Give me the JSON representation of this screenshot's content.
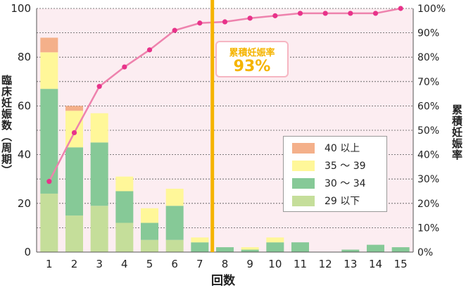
{
  "chart_data": {
    "type": "bar",
    "subtype": "stacked bar with cumulative line",
    "xlabel": "回数",
    "ylabel": "臨床妊娠数（周期）",
    "y2label": "累積妊娠率",
    "categories": [
      "1",
      "2",
      "3",
      "4",
      "5",
      "6",
      "7",
      "8",
      "9",
      "10",
      "11",
      "12",
      "13",
      "14",
      "15"
    ],
    "ylim": [
      0,
      100
    ],
    "yticks": [
      "0",
      "20",
      "40",
      "60",
      "80",
      "100"
    ],
    "y2lim": [
      0,
      100
    ],
    "y2ticks": [
      "0%",
      "10%",
      "20%",
      "30%",
      "40%",
      "50%",
      "60%",
      "70%",
      "80%",
      "90%",
      "100%"
    ],
    "series": [
      {
        "name": "29 以下",
        "color": "#c5de9a",
        "values": [
          24,
          15,
          19,
          12,
          5,
          5,
          0,
          0,
          0,
          0,
          0,
          0,
          0,
          0,
          0
        ]
      },
      {
        "name": "30 ～ 34",
        "color": "#86c997",
        "values": [
          43,
          28,
          26,
          13,
          7,
          14,
          4,
          2,
          1,
          4,
          4,
          0,
          1,
          3,
          2
        ]
      },
      {
        "name": "35 ～ 39",
        "color": "#fff799",
        "values": [
          15,
          15,
          12,
          6,
          6,
          7,
          2,
          0,
          1,
          2,
          0,
          0,
          0,
          0,
          0
        ]
      },
      {
        "name": "40 以上",
        "color": "#f4b08a",
        "values": [
          6,
          2,
          0,
          0,
          0,
          0,
          0,
          0,
          0,
          0,
          0,
          0,
          0,
          0,
          0
        ]
      }
    ],
    "line_series": {
      "axis": "right",
      "color": "#ee82ad",
      "values": [
        29,
        49,
        68,
        76,
        83,
        91,
        94,
        94.5,
        96,
        97,
        98,
        98,
        98,
        98,
        100
      ]
    },
    "marker": {
      "position_after_category": "7",
      "color": "#f5b400"
    },
    "callout": {
      "label": "累積妊娠率",
      "value": "93%"
    },
    "grid": true,
    "legend_order": [
      "40 以上",
      "35 ～ 39",
      "30 ～ 34",
      "29 以下"
    ]
  }
}
